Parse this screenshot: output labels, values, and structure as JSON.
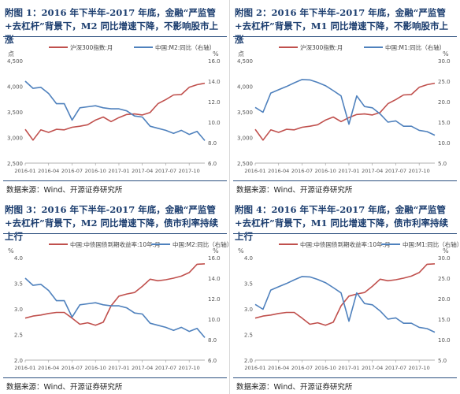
{
  "colors": {
    "red": "#c0504d",
    "blue": "#4f81bd",
    "title": "#1a3c6e",
    "axis": "#888888"
  },
  "chart_data": [
    {
      "type": "line",
      "title": "附图 1：2016 年下半年-2017 年底，金融“严监管+去杠杆”背景下，M2 同比增速下降，不影响股市上涨",
      "source": "数据来源：Wind、开源证券研究所",
      "left_unit": "点",
      "right_unit": "%",
      "left_ylim": [
        2500,
        4500
      ],
      "left_ticks": [
        "2,500",
        "3,000",
        "3,500",
        "4,000",
        "4,500"
      ],
      "right_ylim": [
        6.0,
        16.0
      ],
      "right_ticks": [
        "6.0",
        "8.0",
        "10.0",
        "12.0",
        "14.0",
        "16.0"
      ],
      "x": [
        "2016-01",
        "2016-02",
        "2016-03",
        "2016-04",
        "2016-05",
        "2016-06",
        "2016-07",
        "2016-08",
        "2016-09",
        "2016-10",
        "2016-11",
        "2016-12",
        "2017-01",
        "2017-02",
        "2017-03",
        "2017-04",
        "2017-05",
        "2017-06",
        "2017-07",
        "2017-08",
        "2017-09",
        "2017-10",
        "2017-11",
        "2017-12"
      ],
      "x_ticks": [
        "2016-01",
        "2016-04",
        "2016-07",
        "2016-10",
        "2017-01",
        "2017-04",
        "2017-07",
        "2017-10"
      ],
      "series": [
        {
          "name": "沪深300指数:月",
          "axis": "left",
          "color": "#c0504d",
          "values": [
            3160,
            2950,
            3150,
            3100,
            3160,
            3150,
            3200,
            3220,
            3250,
            3340,
            3400,
            3310,
            3390,
            3450,
            3460,
            3440,
            3490,
            3660,
            3740,
            3830,
            3840,
            3980,
            4030,
            4060
          ]
        },
        {
          "name": "中国:M2:同比（右轴）",
          "axis": "right",
          "color": "#4f81bd",
          "values": [
            14.0,
            13.3,
            13.4,
            12.8,
            11.8,
            11.8,
            10.2,
            11.4,
            11.5,
            11.6,
            11.4,
            11.3,
            11.3,
            11.1,
            10.6,
            10.5,
            9.6,
            9.4,
            9.2,
            8.9,
            9.2,
            8.8,
            9.1,
            8.2
          ]
        }
      ]
    },
    {
      "type": "line",
      "title": "附图 2：2016 年下半年-2017 年底，金融“严监管+去杠杆”背景下，M1 同比增速下降，不影响股市上涨",
      "source": "数据来源：Wind、开源证券研究所",
      "left_unit": "点",
      "right_unit": "%",
      "left_ylim": [
        2500,
        4500
      ],
      "left_ticks": [
        "2,500",
        "3,000",
        "3,500",
        "4,000",
        "4,500"
      ],
      "right_ylim": [
        5.0,
        30.0
      ],
      "right_ticks": [
        "5.0",
        "10.0",
        "15.0",
        "20.0",
        "25.0",
        "30.0"
      ],
      "x": [
        "2016-01",
        "2016-02",
        "2016-03",
        "2016-04",
        "2016-05",
        "2016-06",
        "2016-07",
        "2016-08",
        "2016-09",
        "2016-10",
        "2016-11",
        "2016-12",
        "2017-01",
        "2017-02",
        "2017-03",
        "2017-04",
        "2017-05",
        "2017-06",
        "2017-07",
        "2017-08",
        "2017-09",
        "2017-10",
        "2017-11",
        "2017-12"
      ],
      "x_ticks": [
        "2016-01",
        "2016-04",
        "2016-07",
        "2016-10",
        "2017-01",
        "2017-04",
        "2017-07",
        "2017-10"
      ],
      "series": [
        {
          "name": "沪深300指数:月",
          "axis": "left",
          "color": "#c0504d",
          "values": [
            3160,
            2950,
            3150,
            3100,
            3160,
            3150,
            3200,
            3220,
            3250,
            3340,
            3400,
            3310,
            3390,
            3450,
            3460,
            3440,
            3490,
            3660,
            3740,
            3830,
            3840,
            3980,
            4030,
            4060
          ]
        },
        {
          "name": "中国:M1:同比（右轴）",
          "axis": "right",
          "color": "#4f81bd",
          "values": [
            18.6,
            17.4,
            22.1,
            22.9,
            23.7,
            24.6,
            25.4,
            25.3,
            24.7,
            23.9,
            22.7,
            21.4,
            14.5,
            21.4,
            18.8,
            18.5,
            17.0,
            15.0,
            15.3,
            14.0,
            14.0,
            13.0,
            12.7,
            11.8
          ]
        }
      ]
    },
    {
      "type": "line",
      "title": "附图 3：2016 年下半年-2017 年底，金融“严监管+去杠杆”背景下，M2 同比增速下降，债市利率持续上行",
      "source": "数据来源：Wind、开源证券研究所",
      "left_unit": "%",
      "right_unit": "%",
      "left_ylim": [
        2.0,
        4.0
      ],
      "left_ticks": [
        "2.0",
        "2.5",
        "3.0",
        "3.5",
        "4.0"
      ],
      "right_ylim": [
        6.0,
        16.0
      ],
      "right_ticks": [
        "6.0",
        "8.0",
        "10.0",
        "12.0",
        "14.0",
        "16.0"
      ],
      "x": [
        "2016-01",
        "2016-02",
        "2016-03",
        "2016-04",
        "2016-05",
        "2016-06",
        "2016-07",
        "2016-08",
        "2016-09",
        "2016-10",
        "2016-11",
        "2016-12",
        "2017-01",
        "2017-02",
        "2017-03",
        "2017-04",
        "2017-05",
        "2017-06",
        "2017-07",
        "2017-08",
        "2017-09",
        "2017-10",
        "2017-11",
        "2017-12"
      ],
      "x_ticks": [
        "2016-01",
        "2016-04",
        "2016-07",
        "2016-10",
        "2017-01",
        "2017-04",
        "2017-07",
        "2017-10"
      ],
      "series": [
        {
          "name": "中国:中债国债到期收益率:10年:月",
          "axis": "left",
          "color": "#c0504d",
          "values": [
            2.82,
            2.86,
            2.88,
            2.91,
            2.93,
            2.93,
            2.82,
            2.7,
            2.73,
            2.68,
            2.74,
            3.06,
            3.25,
            3.29,
            3.32,
            3.44,
            3.58,
            3.55,
            3.57,
            3.6,
            3.64,
            3.71,
            3.87,
            3.88
          ]
        },
        {
          "name": "中国:M2:同比（右轴）",
          "axis": "right",
          "color": "#4f81bd",
          "values": [
            14.0,
            13.3,
            13.4,
            12.8,
            11.8,
            11.8,
            10.2,
            11.4,
            11.5,
            11.6,
            11.4,
            11.3,
            11.3,
            11.1,
            10.6,
            10.5,
            9.6,
            9.4,
            9.2,
            8.9,
            9.2,
            8.8,
            9.1,
            8.2
          ]
        }
      ]
    },
    {
      "type": "line",
      "title": "附图 4：2016 年下半年-2017 年底，金融“严监管+去杠杆”背景下，M1 同比增速下降，债市利率持续上行",
      "source": "数据来源：Wind、开源证券研究所",
      "left_unit": "%",
      "right_unit": "%",
      "left_ylim": [
        2.0,
        4.0
      ],
      "left_ticks": [
        "2.0",
        "2.5",
        "3.0",
        "3.5",
        "4.0"
      ],
      "right_ylim": [
        5.0,
        30.0
      ],
      "right_ticks": [
        "5.0",
        "10.0",
        "15.0",
        "20.0",
        "25.0",
        "30.0"
      ],
      "x": [
        "2016-01",
        "2016-02",
        "2016-03",
        "2016-04",
        "2016-05",
        "2016-06",
        "2016-07",
        "2016-08",
        "2016-09",
        "2016-10",
        "2016-11",
        "2016-12",
        "2017-01",
        "2017-02",
        "2017-03",
        "2017-04",
        "2017-05",
        "2017-06",
        "2017-07",
        "2017-08",
        "2017-09",
        "2017-10",
        "2017-11",
        "2017-12"
      ],
      "x_ticks": [
        "2016-01",
        "2016-04",
        "2016-07",
        "2016-10",
        "2017-01",
        "2017-04",
        "2017-07",
        "2017-10"
      ],
      "series": [
        {
          "name": "中国:中债国债到期收益率:10年:月",
          "axis": "left",
          "color": "#c0504d",
          "values": [
            2.82,
            2.86,
            2.88,
            2.91,
            2.93,
            2.93,
            2.82,
            2.7,
            2.73,
            2.68,
            2.74,
            3.06,
            3.25,
            3.29,
            3.32,
            3.44,
            3.58,
            3.55,
            3.57,
            3.6,
            3.64,
            3.71,
            3.87,
            3.88
          ]
        },
        {
          "name": "中国:M1:同比（右轴）",
          "axis": "right",
          "color": "#4f81bd",
          "values": [
            18.6,
            17.4,
            22.1,
            22.9,
            23.7,
            24.6,
            25.4,
            25.3,
            24.7,
            23.9,
            22.7,
            21.4,
            14.5,
            21.4,
            18.8,
            18.5,
            17.0,
            15.0,
            15.3,
            14.0,
            14.0,
            13.0,
            12.7,
            11.8
          ]
        }
      ]
    }
  ]
}
